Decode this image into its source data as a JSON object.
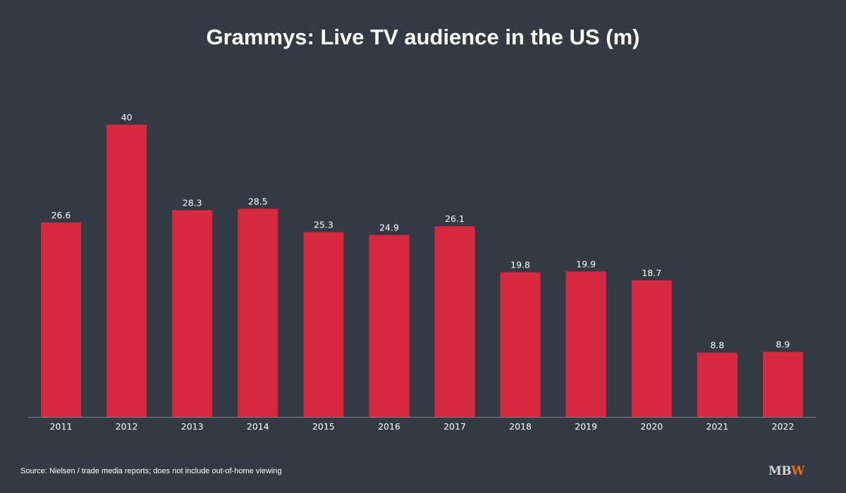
{
  "chart_data": {
    "type": "bar",
    "title": "Grammys: Live TV audience in the US (m)",
    "categories": [
      "2011",
      "2012",
      "2013",
      "2014",
      "2015",
      "2016",
      "2017",
      "2018",
      "2019",
      "2020",
      "2021",
      "2022"
    ],
    "values": [
      26.6,
      40,
      28.3,
      28.5,
      25.3,
      24.9,
      26.1,
      19.8,
      19.9,
      18.7,
      8.8,
      8.9
    ],
    "value_labels": [
      "26.6",
      "40",
      "28.3",
      "28.5",
      "25.3",
      "24.9",
      "26.1",
      "19.8",
      "19.9",
      "18.7",
      "8.8",
      "8.9"
    ],
    "xlabel": "",
    "ylabel": "",
    "ylim": [
      0,
      40
    ],
    "grid": false,
    "legend": "none",
    "data_labels": "above bars",
    "colors": {
      "background": "#343a44",
      "bar": "#d72840",
      "axis": "#7d828a",
      "text": "#ffffff"
    }
  },
  "footer": {
    "source": "Source: Nielsen / trade media reports; does not include out-of-home viewing",
    "logo_main": "MB",
    "logo_accent": "W"
  }
}
